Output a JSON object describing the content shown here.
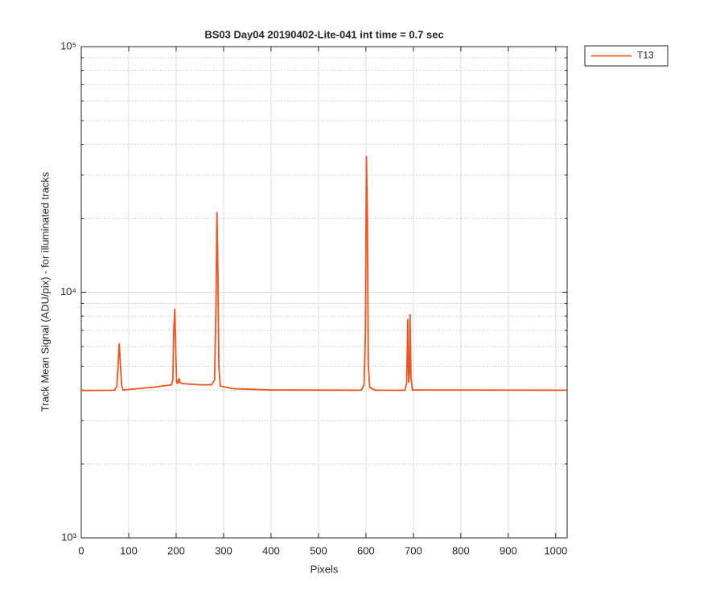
{
  "chart_data": {
    "type": "line",
    "title": "BS03 Day04 20190402-Lite-041 int time = 0.7 sec",
    "xlabel": "Pixels",
    "ylabel": "Track Mean Signal (ADU/pix) - for illuminated tracks",
    "x": [
      0,
      70,
      75,
      78,
      80,
      82,
      85,
      88,
      100,
      150,
      190,
      193,
      195,
      197,
      199,
      201,
      203,
      205,
      206,
      207,
      208,
      212,
      250,
      275,
      281,
      284,
      286,
      288,
      290,
      293,
      320,
      400,
      590,
      596,
      599,
      601,
      603,
      605,
      608,
      620,
      682,
      686,
      688,
      690,
      692,
      693,
      695,
      698,
      1023
    ],
    "series": [
      {
        "name": "T13",
        "color": "#f2521b",
        "values": [
          3980,
          3990,
          4150,
          5200,
          6170,
          5300,
          4200,
          4000,
          4020,
          4100,
          4200,
          4400,
          7000,
          8530,
          6000,
          4300,
          4250,
          4400,
          4300,
          4450,
          4300,
          4250,
          4200,
          4200,
          4400,
          9000,
          21100,
          12000,
          5000,
          4150,
          4050,
          4000,
          3990,
          4200,
          7000,
          35700,
          20000,
          5000,
          4100,
          3990,
          3990,
          4300,
          7740,
          4300,
          4800,
          8100,
          4500,
          4000,
          3990
        ]
      }
    ],
    "xlim": [
      0,
      1024
    ],
    "xticks": [
      0,
      100,
      200,
      300,
      400,
      500,
      600,
      700,
      800,
      900,
      1000
    ],
    "ylim": [
      1000,
      100000
    ],
    "yticks": [
      {
        "value": 1000,
        "label": "10³"
      },
      {
        "value": 10000,
        "label": "10⁴"
      },
      {
        "value": 100000,
        "label": "10⁵"
      }
    ],
    "yscale": "log",
    "grid": true,
    "minor_grid": true,
    "legend": "northeastoutside"
  }
}
